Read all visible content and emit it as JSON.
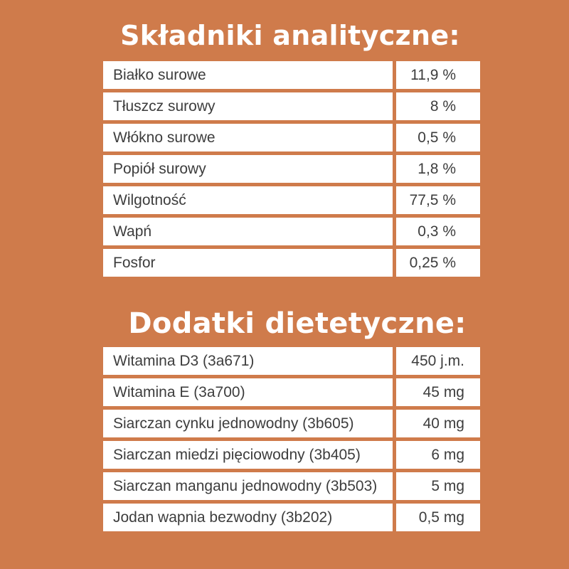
{
  "analytic": {
    "title": "Składniki analityczne:",
    "rows": [
      {
        "name": "Białko surowe",
        "value": "11,9 %"
      },
      {
        "name": "Tłuszcz surowy",
        "value": "8 %"
      },
      {
        "name": "Włókno surowe",
        "value": "0,5 %"
      },
      {
        "name": "Popiół surowy",
        "value": "1,8 %"
      },
      {
        "name": "Wilgotność",
        "value": "77,5 %"
      },
      {
        "name": "Wapń",
        "value": "0,3 %"
      },
      {
        "name": "Fosfor",
        "value": "0,25 %"
      }
    ]
  },
  "additives": {
    "title": "Dodatki dietetyczne:",
    "rows": [
      {
        "name": "Witamina D3 (3a671)",
        "value": "450 j.m."
      },
      {
        "name": "Witamina E (3a700)",
        "value": "45 mg"
      },
      {
        "name": "Siarczan  cynku jednowodny (3b605)",
        "value": "40 mg"
      },
      {
        "name": "Siarczan  miedzi pięciowodny (3b405)",
        "value": "6 mg"
      },
      {
        "name": "Siarczan  manganu jednowodny (3b503)",
        "value": "5 mg"
      },
      {
        "name": "Jodan wapnia bezwodny (3b202)",
        "value": "0,5 mg"
      }
    ]
  },
  "colors": {
    "background": "#cf7b4b",
    "cell": "#ffffff",
    "text": "#3d3d3d",
    "title": "#ffffff"
  }
}
